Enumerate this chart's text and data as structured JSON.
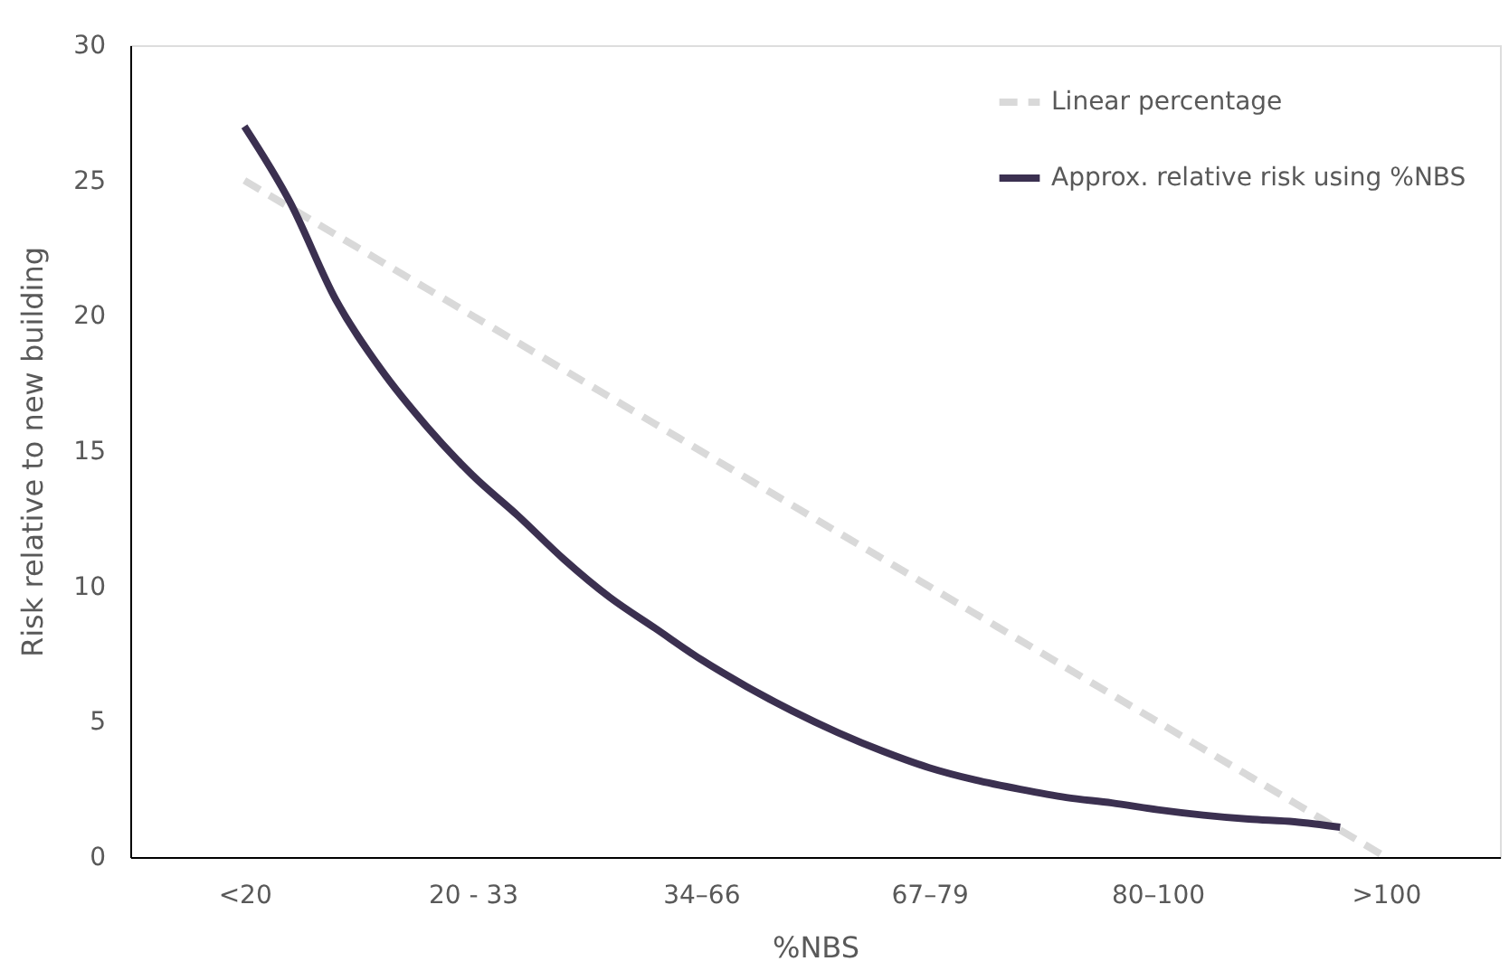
{
  "chart_data": {
    "type": "line",
    "xlabel": "%NBS",
    "ylabel": "Risk relative to new building",
    "categories": [
      "<20",
      null,
      null,
      null,
      null,
      "20 - 33",
      null,
      null,
      null,
      null,
      "34–66",
      null,
      null,
      null,
      null,
      "67–79",
      null,
      null,
      null,
      null,
      "80–100",
      null,
      null,
      null,
      null,
      ">100"
    ],
    "ylim": [
      0,
      30
    ],
    "yticks": [
      0,
      5,
      10,
      15,
      20,
      25,
      30
    ],
    "grid": false,
    "legend": "top right",
    "marker": "none",
    "series": [
      {
        "name": "Linear percentage",
        "color": "#d9d9d9",
        "line_style": "dashed",
        "values": [
          25,
          24,
          23,
          22,
          21,
          20,
          19,
          18,
          17,
          16,
          15,
          14,
          13,
          12,
          11,
          10,
          9,
          8,
          7,
          6,
          5,
          4,
          3,
          2,
          1,
          0
        ]
      },
      {
        "name": "Approx. relative risk using %NBS",
        "color": "#3b3050",
        "line_style": "solid",
        "values": [
          27,
          24.2,
          20.6,
          18.0,
          15.9,
          14.1,
          12.6,
          11.0,
          9.6,
          8.45,
          7.3,
          6.3,
          5.4,
          4.6,
          3.9,
          3.3,
          2.85,
          2.5,
          2.2,
          2.0,
          1.75,
          1.55,
          1.4,
          1.3,
          1.1,
          null
        ]
      }
    ]
  }
}
